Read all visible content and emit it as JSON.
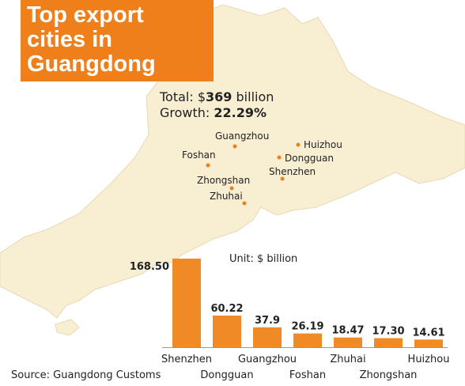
{
  "chart_data": {
    "type": "bar",
    "title": "Top export cities in Guangdong",
    "subtitle": "Unit: $ billion",
    "categories": [
      "Shenzhen",
      "Dongguan",
      "Guangzhou",
      "Foshan",
      "Zhuhai",
      "Zhongshan",
      "Huizhou"
    ],
    "values": [
      168.5,
      60.22,
      37.9,
      26.19,
      18.47,
      17.3,
      14.61
    ],
    "value_labels": [
      "168.50",
      "60.22",
      "37.9",
      "26.19",
      "18.47",
      "17.30",
      "14.61"
    ],
    "color": "#f08a24",
    "source": "Source: Guangdong Customs"
  },
  "annotations": {
    "total": {
      "prefix": "Total: $",
      "amount": 369,
      "suffix": " billion"
    },
    "growth": {
      "prefix": "Growth: ",
      "amount": "22.29%"
    }
  },
  "map": {
    "cities": [
      "Guangzhou",
      "Foshan",
      "Zhongshan",
      "Zhuhai",
      "Huizhou",
      "Dongguan",
      "Shenzhen"
    ]
  }
}
